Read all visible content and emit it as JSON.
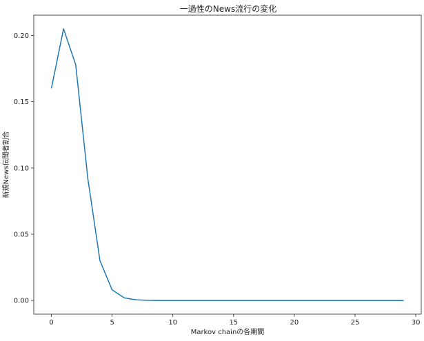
{
  "chart_data": {
    "type": "line",
    "title": "一過性のNews流行の変化",
    "xlabel": "Markov chainの各期間",
    "ylabel": "新規News伝聞者割合",
    "xlim": [
      -1.45,
      30.45
    ],
    "ylim": [
      -0.0103,
      0.2153
    ],
    "xticks": [
      0,
      5,
      10,
      15,
      20,
      25,
      30
    ],
    "xtick_labels": [
      "0",
      "5",
      "10",
      "15",
      "20",
      "25",
      "30"
    ],
    "yticks": [
      0.0,
      0.05,
      0.1,
      0.15,
      0.2
    ],
    "ytick_labels": [
      "0.00",
      "0.05",
      "0.10",
      "0.15",
      "0.20"
    ],
    "grid": false,
    "series": [
      {
        "color": "#1f77b4",
        "x": [
          0,
          1,
          2,
          3,
          4,
          5,
          6,
          7,
          8,
          9,
          10,
          11,
          12,
          13,
          14,
          15,
          16,
          17,
          18,
          19,
          20,
          21,
          22,
          23,
          24,
          25,
          26,
          27,
          28,
          29
        ],
        "y": [
          0.16,
          0.205,
          0.178,
          0.092,
          0.03,
          0.008,
          0.002,
          0.0005,
          0.0001,
          0,
          0,
          0,
          0,
          0,
          0,
          0,
          0,
          0,
          0,
          0,
          0,
          0,
          0,
          0,
          0,
          0,
          0,
          0,
          0,
          0
        ]
      }
    ]
  }
}
